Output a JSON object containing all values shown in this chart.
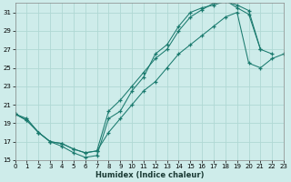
{
  "xlabel": "Humidex (Indice chaleur)",
  "bg_color": "#ceecea",
  "grid_color": "#b0d8d4",
  "line_color": "#1a7a6e",
  "xlim": [
    0,
    23
  ],
  "ylim": [
    15,
    32
  ],
  "xticks": [
    0,
    1,
    2,
    3,
    4,
    5,
    6,
    7,
    8,
    9,
    10,
    11,
    12,
    13,
    14,
    15,
    16,
    17,
    18,
    19,
    20,
    21,
    22,
    23
  ],
  "yticks": [
    15,
    17,
    19,
    21,
    23,
    25,
    27,
    29,
    31
  ],
  "line1_x": [
    0,
    1,
    2,
    3,
    4,
    5,
    6,
    7,
    8,
    9,
    10,
    11,
    12,
    13,
    14,
    15,
    16,
    17,
    18,
    19,
    20,
    21,
    22
  ],
  "line1_y": [
    20.0,
    19.5,
    18.0,
    17.0,
    16.5,
    15.8,
    15.3,
    15.5,
    19.5,
    20.3,
    22.5,
    24.0,
    26.5,
    27.5,
    29.5,
    31.0,
    31.5,
    31.8,
    32.2,
    31.8,
    31.2,
    27.0,
    26.5
  ],
  "line2_x": [
    0,
    1,
    2,
    3,
    4,
    5,
    6,
    7,
    8,
    9,
    10,
    11,
    12,
    13,
    14,
    15,
    16,
    17,
    18,
    19,
    20,
    21
  ],
  "line2_y": [
    20.0,
    19.3,
    18.0,
    17.0,
    16.8,
    16.2,
    15.8,
    16.0,
    20.3,
    21.5,
    23.0,
    24.5,
    26.0,
    27.0,
    29.0,
    30.5,
    31.3,
    32.0,
    32.3,
    31.5,
    30.8,
    27.0
  ],
  "line3_x": [
    0,
    1,
    2,
    3,
    4,
    5,
    6,
    7,
    8,
    9,
    10,
    11,
    12,
    13,
    14,
    15,
    16,
    17,
    18,
    19,
    20,
    21,
    22,
    23
  ],
  "line3_y": [
    20.0,
    19.3,
    18.0,
    17.0,
    16.8,
    16.2,
    15.8,
    16.0,
    18.0,
    19.5,
    21.0,
    22.5,
    23.5,
    25.0,
    26.5,
    27.5,
    28.5,
    29.5,
    30.5,
    31.0,
    25.5,
    25.0,
    26.0,
    26.5
  ]
}
